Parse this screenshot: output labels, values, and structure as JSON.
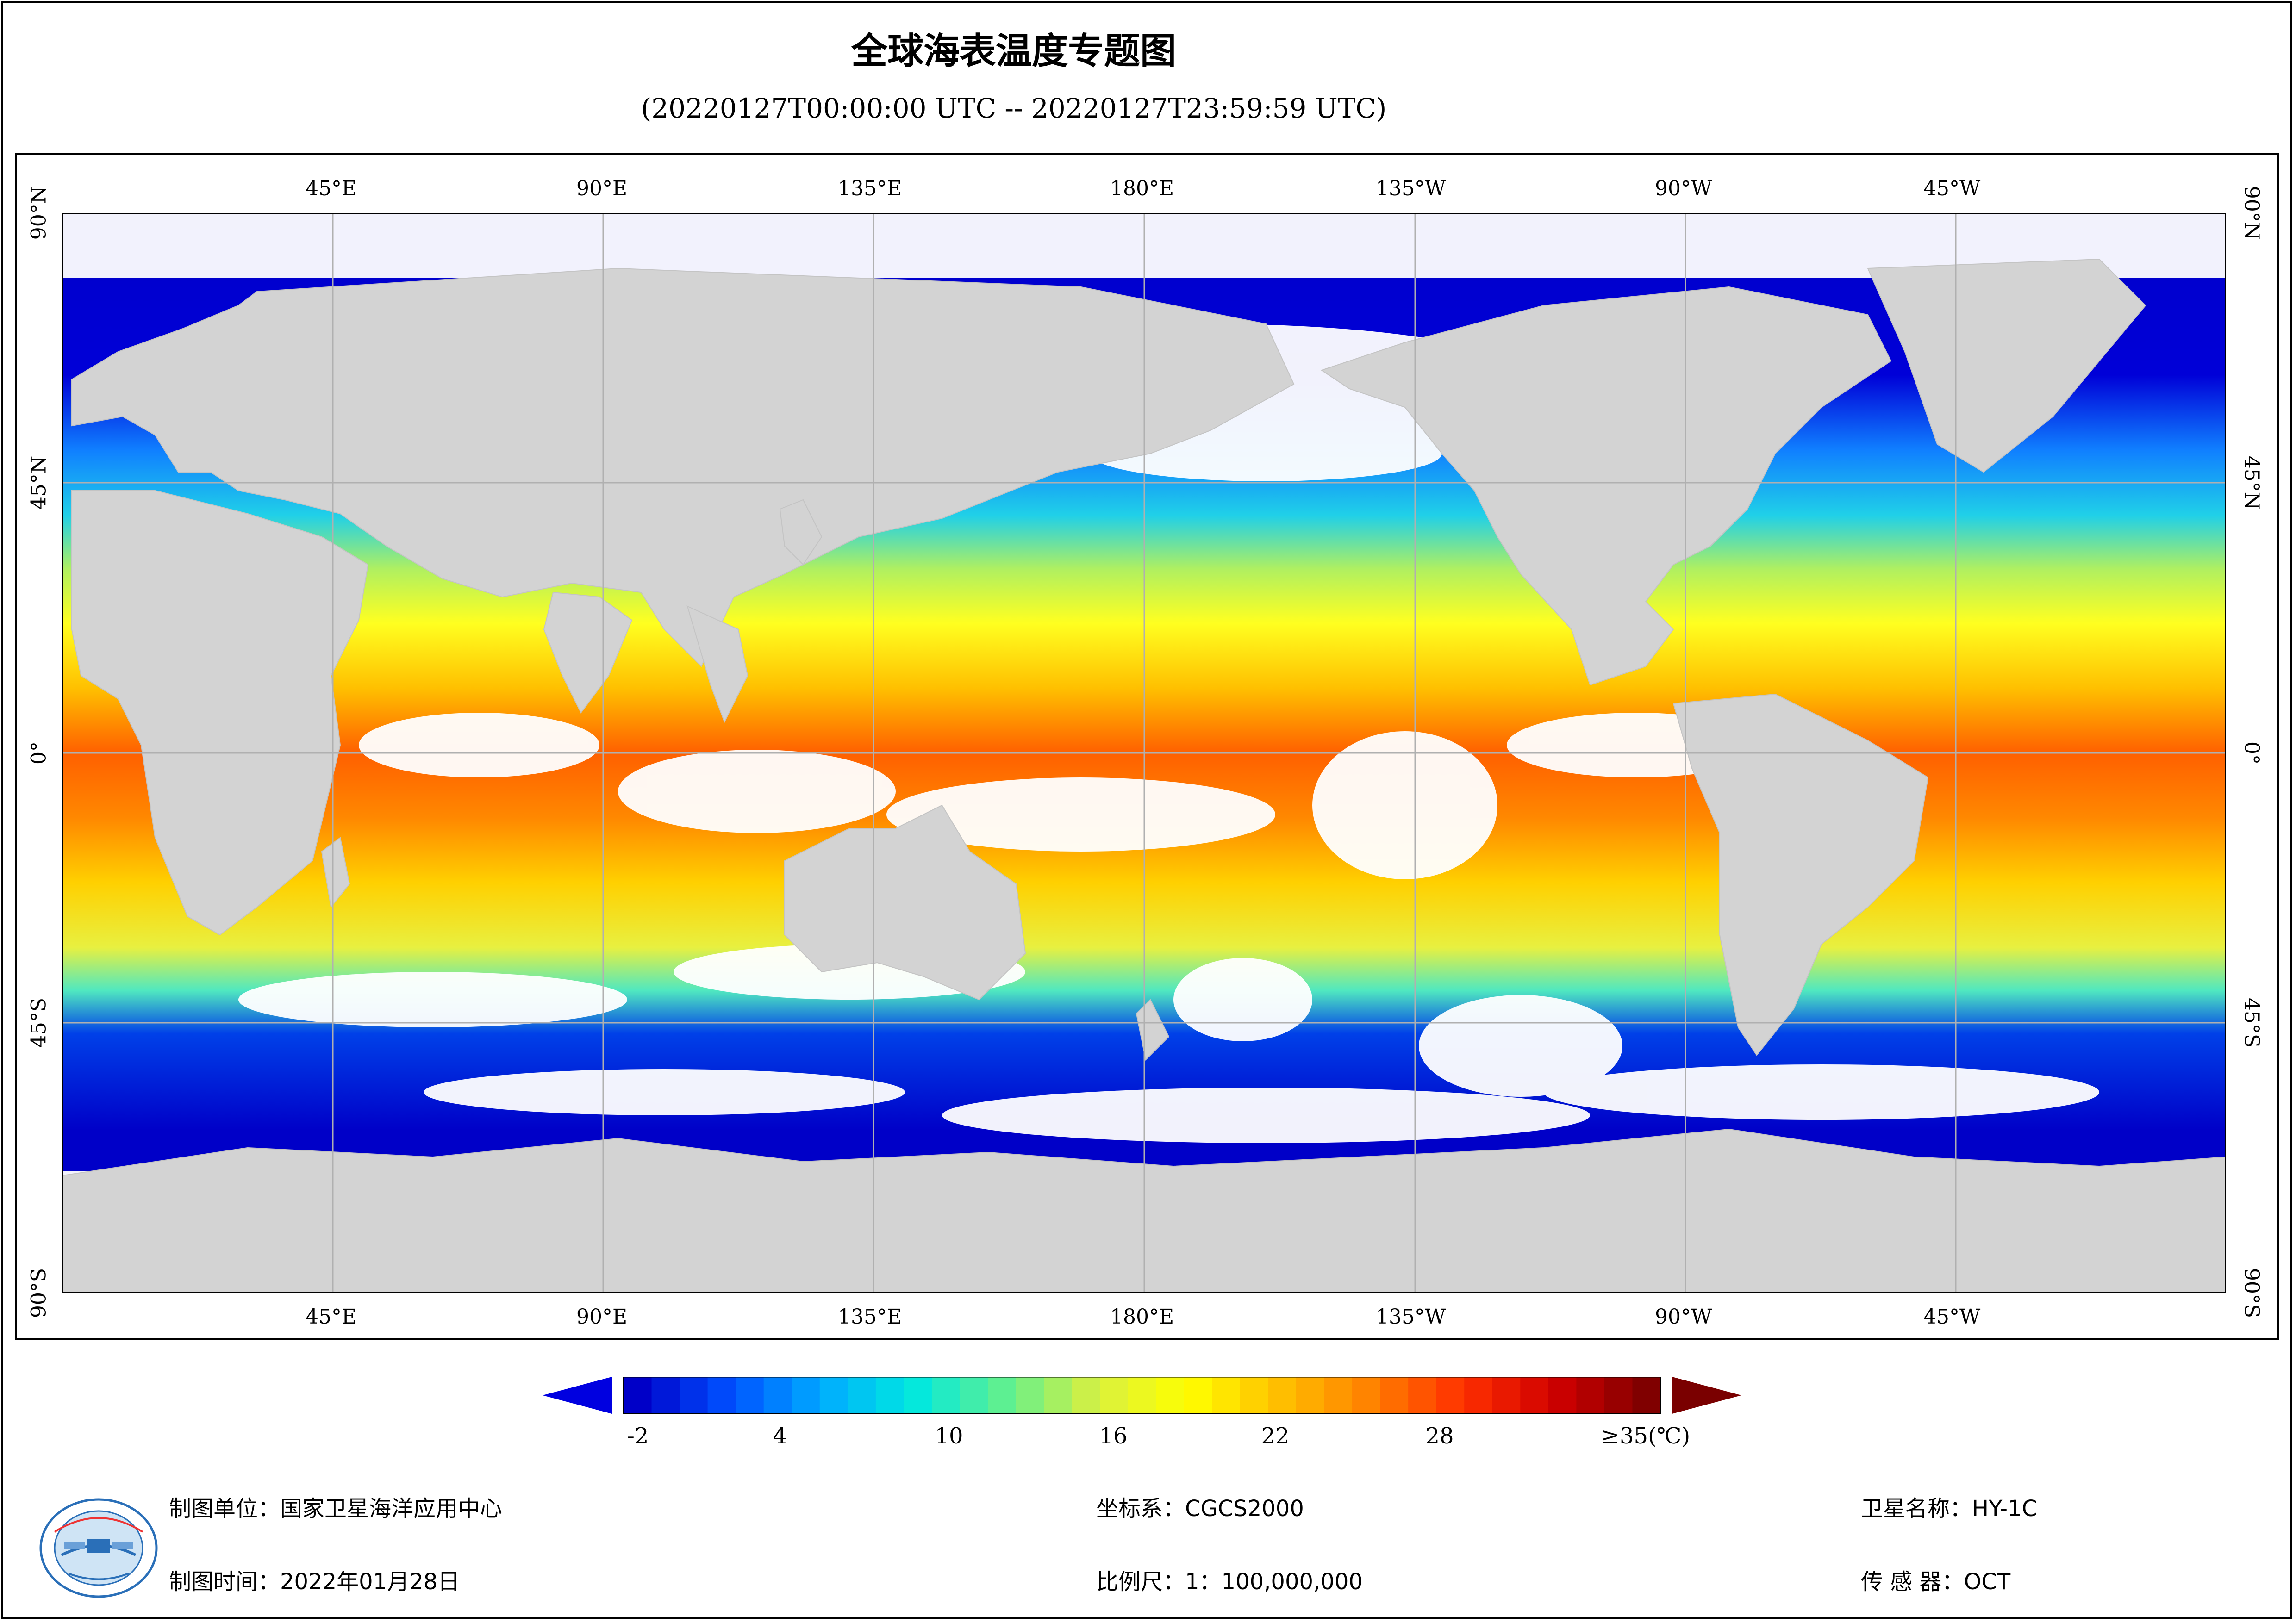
{
  "title": "全球海表温度专题图",
  "subtitle": "(20220127T00:00:00 UTC -- 20220127T23:59:59 UTC)",
  "map": {
    "top_lon_labels": [
      "45°E",
      "90°E",
      "135°E",
      "180°E",
      "135°W",
      "90°W",
      "45°W"
    ],
    "bottom_lon_labels": [
      "45°E",
      "90°E",
      "135°E",
      "180°E",
      "135°W",
      "90°W",
      "45°W"
    ],
    "lat_labels": [
      "90°N",
      "45°N",
      "0°",
      "45°S",
      "90°S"
    ],
    "colors": {
      "land": "#d3d3d3",
      "cloud": "#ffffff",
      "grid": "#b0b0b0"
    }
  },
  "colorbar": {
    "ticks": [
      "-2",
      "4",
      "10",
      "16",
      "22",
      "28",
      "≥35(℃)"
    ],
    "range": [
      -2,
      35
    ],
    "unit": "℃",
    "colors": [
      "#0000c8",
      "#0050ff",
      "#00aaff",
      "#00e8e0",
      "#60f090",
      "#d8f040",
      "#ffff00",
      "#ffc000",
      "#ff8000",
      "#ff3000",
      "#d00000",
      "#800000"
    ]
  },
  "footer": {
    "unit_label": "制图单位：国家卫星海洋应用中心",
    "date_label": "制图时间：2022年01月28日",
    "crs_label": "坐标系：CGCS2000",
    "scale_label": "比例尺：1：100,000,000",
    "satellite_label": "卫星名称：HY-1C",
    "sensor_label": "传 感 器：OCT"
  }
}
